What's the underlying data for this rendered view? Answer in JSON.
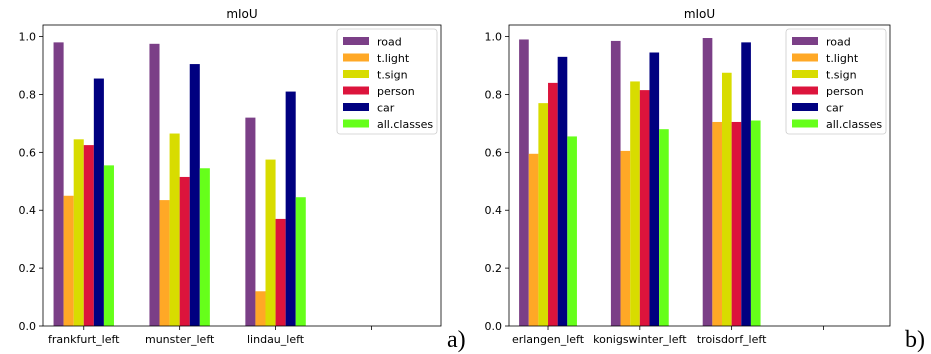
{
  "chart_data": [
    {
      "type": "bar",
      "title": "mIoU",
      "panel_label": "a)",
      "categories": [
        "frankfurt_left",
        "munster_left",
        "lindau_left",
        ""
      ],
      "series": [
        {
          "name": "road",
          "color": "#7b3f87",
          "values": [
            0.98,
            0.975,
            0.72,
            null
          ]
        },
        {
          "name": "t.light",
          "color": "#ffa826",
          "values": [
            0.45,
            0.435,
            0.12,
            null
          ]
        },
        {
          "name": "t.sign",
          "color": "#d8dc00",
          "values": [
            0.645,
            0.665,
            0.575,
            null
          ]
        },
        {
          "name": "person",
          "color": "#dc143c",
          "values": [
            0.625,
            0.515,
            0.37,
            null
          ]
        },
        {
          "name": "car",
          "color": "#000080",
          "values": [
            0.855,
            0.905,
            0.81,
            null
          ]
        },
        {
          "name": "all.classes",
          "color": "#66ff1a",
          "values": [
            0.555,
            0.545,
            0.445,
            null
          ]
        }
      ],
      "ylim": [
        0,
        1.04
      ],
      "yticks": [
        "0.0",
        "0.2",
        "0.4",
        "0.6",
        "0.8",
        "1.0"
      ],
      "legend": "top-right",
      "grid": false
    },
    {
      "type": "bar",
      "title": "mIoU",
      "panel_label": "b)",
      "categories": [
        "erlangen_left",
        "konigswinter_left",
        "troisdorf_left",
        ""
      ],
      "series": [
        {
          "name": "road",
          "color": "#7b3f87",
          "values": [
            0.99,
            0.985,
            0.995,
            null
          ]
        },
        {
          "name": "t.light",
          "color": "#ffa826",
          "values": [
            0.595,
            0.605,
            0.705,
            null
          ]
        },
        {
          "name": "t.sign",
          "color": "#d8dc00",
          "values": [
            0.77,
            0.845,
            0.875,
            null
          ]
        },
        {
          "name": "person",
          "color": "#dc143c",
          "values": [
            0.84,
            0.815,
            0.705,
            null
          ]
        },
        {
          "name": "car",
          "color": "#000080",
          "values": [
            0.93,
            0.945,
            0.98,
            null
          ]
        },
        {
          "name": "all.classes",
          "color": "#66ff1a",
          "values": [
            0.655,
            0.68,
            0.71,
            null
          ]
        }
      ],
      "ylim": [
        0,
        1.04
      ],
      "yticks": [
        "0.0",
        "0.2",
        "0.4",
        "0.6",
        "0.8",
        "1.0"
      ],
      "legend": "top-right",
      "grid": false
    }
  ]
}
